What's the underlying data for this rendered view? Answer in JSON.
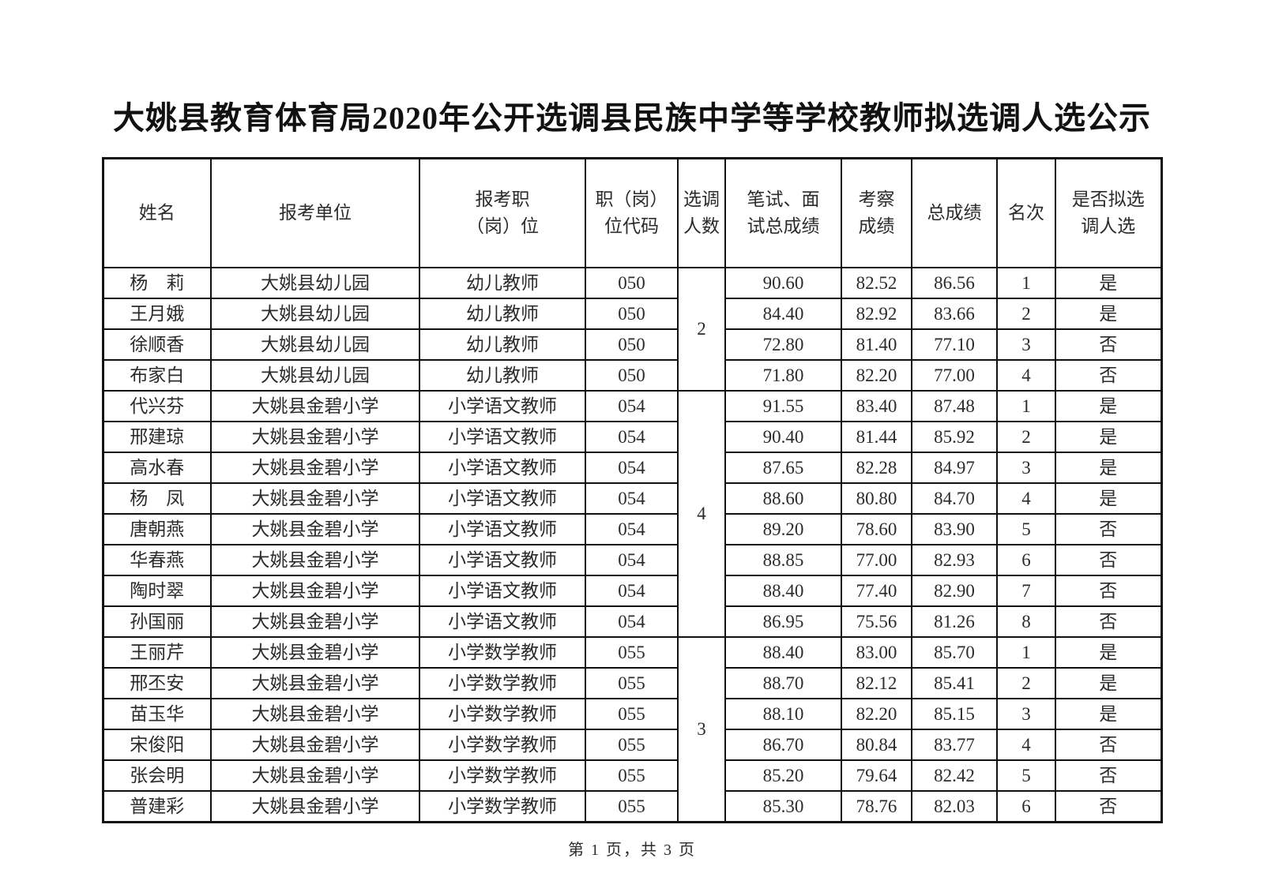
{
  "page": {
    "title": "大姚县教育体育局2020年公开选调县民族中学等学校教师拟选调人选公示",
    "footer": "第 1 页，共 3 页"
  },
  "table": {
    "headers": [
      "姓名",
      "报考单位",
      "报考职\n（岗）位",
      "职（岗）\n位代码",
      "选调\n人数",
      "笔试、面\n试总成绩",
      "考察\n成绩",
      "总成绩",
      "名次",
      "是否拟选\n调人选"
    ],
    "quota_groups": [
      {
        "quota": "2",
        "start": 0,
        "count": 4
      },
      {
        "quota": "4",
        "start": 4,
        "count": 8
      },
      {
        "quota": "3",
        "start": 12,
        "count": 6
      }
    ],
    "rows": [
      {
        "name": "杨　莉",
        "unit": "大姚县幼儿园",
        "position": "幼儿教师",
        "code": "050",
        "exam": "90.60",
        "inspect": "82.52",
        "total": "86.56",
        "rank": "1",
        "selected": "是"
      },
      {
        "name": "王月娥",
        "unit": "大姚县幼儿园",
        "position": "幼儿教师",
        "code": "050",
        "exam": "84.40",
        "inspect": "82.92",
        "total": "83.66",
        "rank": "2",
        "selected": "是"
      },
      {
        "name": "徐顺香",
        "unit": "大姚县幼儿园",
        "position": "幼儿教师",
        "code": "050",
        "exam": "72.80",
        "inspect": "81.40",
        "total": "77.10",
        "rank": "3",
        "selected": "否"
      },
      {
        "name": "布家白",
        "unit": "大姚县幼儿园",
        "position": "幼儿教师",
        "code": "050",
        "exam": "71.80",
        "inspect": "82.20",
        "total": "77.00",
        "rank": "4",
        "selected": "否"
      },
      {
        "name": "代兴芬",
        "unit": "大姚县金碧小学",
        "position": "小学语文教师",
        "code": "054",
        "exam": "91.55",
        "inspect": "83.40",
        "total": "87.48",
        "rank": "1",
        "selected": "是"
      },
      {
        "name": "邢建琼",
        "unit": "大姚县金碧小学",
        "position": "小学语文教师",
        "code": "054",
        "exam": "90.40",
        "inspect": "81.44",
        "total": "85.92",
        "rank": "2",
        "selected": "是"
      },
      {
        "name": "高水春",
        "unit": "大姚县金碧小学",
        "position": "小学语文教师",
        "code": "054",
        "exam": "87.65",
        "inspect": "82.28",
        "total": "84.97",
        "rank": "3",
        "selected": "是"
      },
      {
        "name": "杨　凤",
        "unit": "大姚县金碧小学",
        "position": "小学语文教师",
        "code": "054",
        "exam": "88.60",
        "inspect": "80.80",
        "total": "84.70",
        "rank": "4",
        "selected": "是"
      },
      {
        "name": "唐朝燕",
        "unit": "大姚县金碧小学",
        "position": "小学语文教师",
        "code": "054",
        "exam": "89.20",
        "inspect": "78.60",
        "total": "83.90",
        "rank": "5",
        "selected": "否"
      },
      {
        "name": "华春燕",
        "unit": "大姚县金碧小学",
        "position": "小学语文教师",
        "code": "054",
        "exam": "88.85",
        "inspect": "77.00",
        "total": "82.93",
        "rank": "6",
        "selected": "否"
      },
      {
        "name": "陶时翠",
        "unit": "大姚县金碧小学",
        "position": "小学语文教师",
        "code": "054",
        "exam": "88.40",
        "inspect": "77.40",
        "total": "82.90",
        "rank": "7",
        "selected": "否"
      },
      {
        "name": "孙国丽",
        "unit": "大姚县金碧小学",
        "position": "小学语文教师",
        "code": "054",
        "exam": "86.95",
        "inspect": "75.56",
        "total": "81.26",
        "rank": "8",
        "selected": "否"
      },
      {
        "name": "王丽芹",
        "unit": "大姚县金碧小学",
        "position": "小学数学教师",
        "code": "055",
        "exam": "88.40",
        "inspect": "83.00",
        "total": "85.70",
        "rank": "1",
        "selected": "是"
      },
      {
        "name": "邢丕安",
        "unit": "大姚县金碧小学",
        "position": "小学数学教师",
        "code": "055",
        "exam": "88.70",
        "inspect": "82.12",
        "total": "85.41",
        "rank": "2",
        "selected": "是"
      },
      {
        "name": "苗玉华",
        "unit": "大姚县金碧小学",
        "position": "小学数学教师",
        "code": "055",
        "exam": "88.10",
        "inspect": "82.20",
        "total": "85.15",
        "rank": "3",
        "selected": "是"
      },
      {
        "name": "宋俊阳",
        "unit": "大姚县金碧小学",
        "position": "小学数学教师",
        "code": "055",
        "exam": "86.70",
        "inspect": "80.84",
        "total": "83.77",
        "rank": "4",
        "selected": "否"
      },
      {
        "name": "张会明",
        "unit": "大姚县金碧小学",
        "position": "小学数学教师",
        "code": "055",
        "exam": "85.20",
        "inspect": "79.64",
        "total": "82.42",
        "rank": "5",
        "selected": "否"
      },
      {
        "name": "普建彩",
        "unit": "大姚县金碧小学",
        "position": "小学数学教师",
        "code": "055",
        "exam": "85.30",
        "inspect": "78.76",
        "total": "82.03",
        "rank": "6",
        "selected": "否"
      }
    ]
  }
}
